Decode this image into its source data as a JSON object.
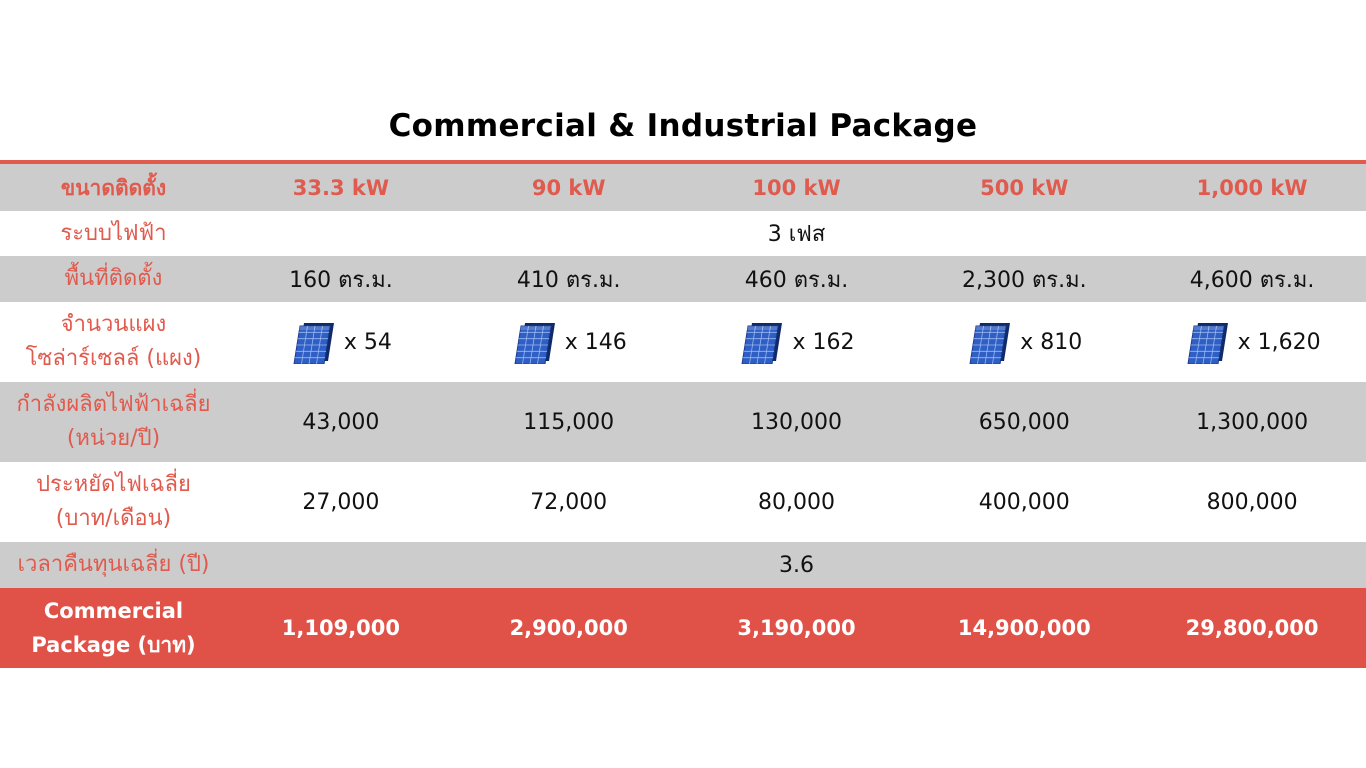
{
  "title": "Commercial & Industrial Package",
  "colors": {
    "accent": "#e05a4d",
    "row_gray": "#cccccc",
    "total_row": "#e05248"
  },
  "header": {
    "label": "ขนาดติดตั้ง",
    "cols": [
      "33.3 kW",
      "90 kW",
      "100 kW",
      "500 kW",
      "1,000 kW"
    ]
  },
  "rows": {
    "system": {
      "label": "ระบบไฟฟ้า",
      "value": "3 เฟส"
    },
    "area": {
      "label": "พื้นที่ติดตั้ง",
      "values": [
        "160 ตร.ม.",
        "410 ตร.ม.",
        "460 ตร.ม.",
        "2,300 ตร.ม.",
        "4,600 ตร.ม."
      ]
    },
    "panels": {
      "label_1": "จำนวนแผง",
      "label_2": "โซล่าร์เซลล์ (แผง)",
      "icon": "solar-panel-icon",
      "values": [
        "x 54",
        "x 146",
        "x 162",
        "x 810",
        "x 1,620"
      ]
    },
    "production": {
      "label_1": "กำลังผลิตไฟฟ้าเฉลี่ย",
      "label_2": "(หน่วย/ปี)",
      "values": [
        "43,000",
        "115,000",
        "130,000",
        "650,000",
        "1,300,000"
      ]
    },
    "savings": {
      "label_1": "ประหยัดไฟเฉลี่ย",
      "label_2": "(บาท/เดือน)",
      "values": [
        "27,000",
        "72,000",
        "80,000",
        "400,000",
        "800,000"
      ]
    },
    "payback": {
      "label": "เวลาคืนทุนเฉลี่ย (ปี)",
      "value": "3.6"
    },
    "price": {
      "label_1": "Commercial",
      "label_2": "Package (บาท)",
      "values": [
        "1,109,000",
        "2,900,000",
        "3,190,000",
        "14,900,000",
        "29,800,000"
      ]
    }
  }
}
